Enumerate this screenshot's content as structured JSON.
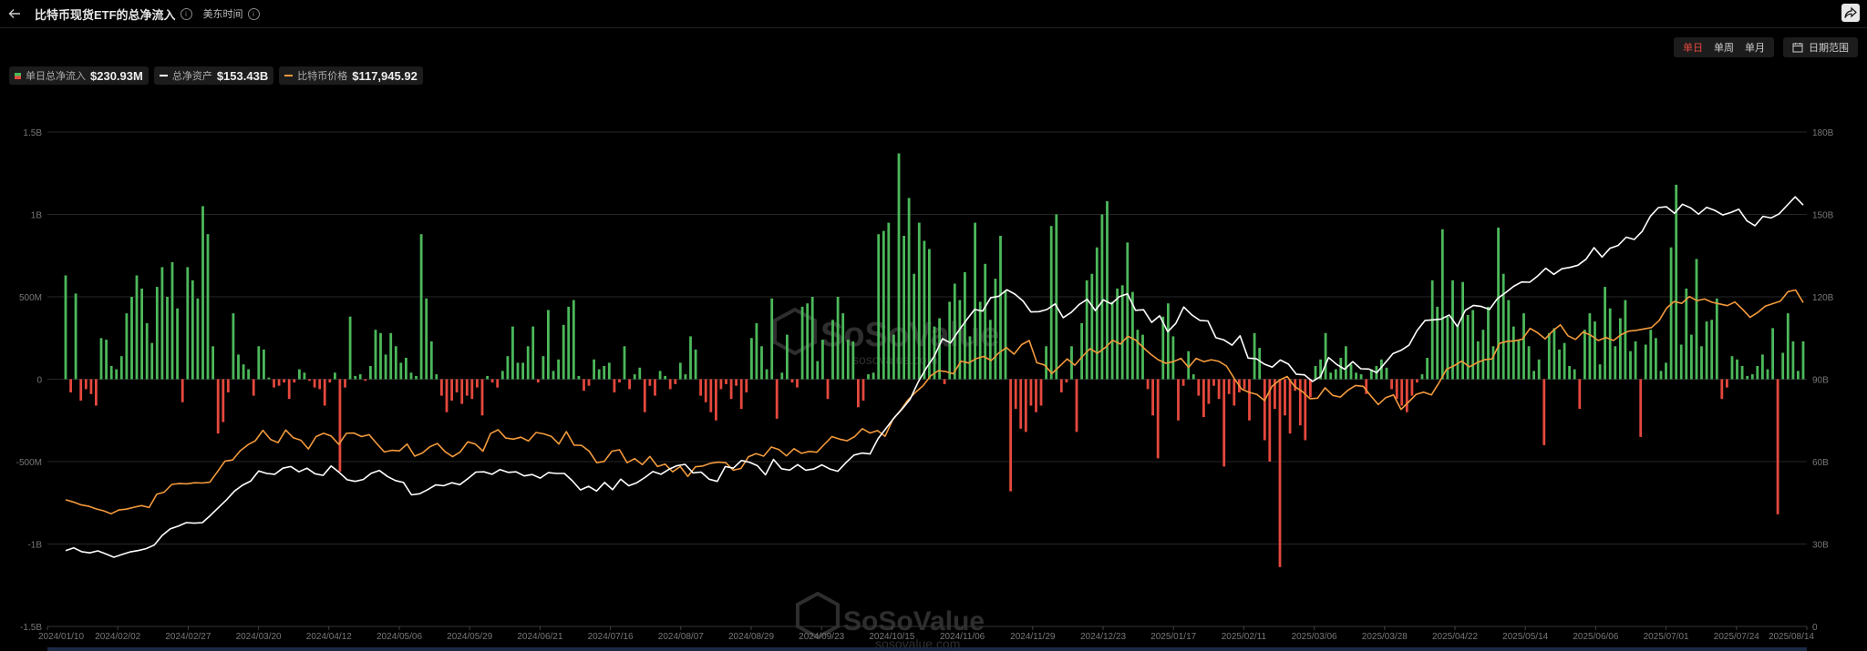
{
  "header": {
    "title": "比特币现货ETF的总净流入",
    "timezone": "美东时间"
  },
  "controls": {
    "periods": [
      "单日",
      "单周",
      "单月"
    ],
    "active_period": "单日",
    "date_range_label": "日期范围"
  },
  "legend": [
    {
      "label": "单日总净流入",
      "value": "$230.93M",
      "color": "#4cb85a"
    },
    {
      "label": "总净资产",
      "value": "$153.43B",
      "color": "#ffffff"
    },
    {
      "label": "比特币价格",
      "value": "$117,945.92",
      "color": "#f39a3c"
    }
  ],
  "watermark": {
    "brand": "SoSoValue",
    "url": "sosovalue.com"
  },
  "chart_data": {
    "type": "bar+line",
    "x_ticks": [
      "2024/01/10",
      "2024/02/02",
      "2024/02/27",
      "2024/03/20",
      "2024/04/12",
      "2024/05/06",
      "2024/05/29",
      "2024/06/21",
      "2024/07/16",
      "2024/08/07",
      "2024/08/29",
      "2024/09/23",
      "2024/10/15",
      "2024/11/06",
      "2024/11/29",
      "2024/12/23",
      "2025/01/17",
      "2025/02/11",
      "2025/03/06",
      "2025/03/28",
      "2025/04/22",
      "2025/05/14",
      "2025/06/06",
      "2025/07/01",
      "2025/07/24",
      "2025/08/14"
    ],
    "y_left": {
      "ticks": [
        1.5,
        1,
        0.5,
        0,
        -0.5,
        -1,
        -1.5
      ],
      "tick_labels": [
        "1.5B",
        "1B",
        "500M",
        "0",
        "-500M",
        "-1B",
        "-1.5B"
      ],
      "range": [
        -1.5,
        1.5
      ],
      "unit": "B USD"
    },
    "y_right": {
      "ticks": [
        180,
        150,
        120,
        90,
        60,
        30,
        0
      ],
      "tick_labels": [
        "180B",
        "150B",
        "120B",
        "90B",
        "60B",
        "30B",
        "0"
      ],
      "range": [
        0,
        180
      ],
      "unit": "B USD"
    },
    "grid": true,
    "series": [
      {
        "name": "单日总净流入",
        "type": "bar",
        "axis": "left",
        "positive_color": "#4cb85a",
        "negative_color": "#e5483d",
        "values": [
          0.63,
          -0.08,
          0.52,
          -0.13,
          -0.06,
          -0.09,
          -0.16,
          0.25,
          0.24,
          0.08,
          0.06,
          0.14,
          0.4,
          0.5,
          0.63,
          0.55,
          0.34,
          0.22,
          0.56,
          0.68,
          0.5,
          0.71,
          0.43,
          -0.14,
          0.68,
          0.6,
          0.49,
          1.05,
          0.88,
          0.2,
          -0.33,
          -0.26,
          -0.08,
          0.4,
          0.15,
          0.09,
          0.06,
          -0.1,
          0.2,
          0.18,
          0.01,
          -0.05,
          -0.04,
          -0.02,
          -0.12,
          -0.02,
          0.06,
          0.04,
          -0.01,
          -0.05,
          -0.06,
          -0.16,
          -0.02,
          0.04,
          -0.56,
          -0.05,
          0.38,
          0.02,
          0.03,
          -0.01,
          0.08,
          0.3,
          0.28,
          0.15,
          0.28,
          0.2,
          0.1,
          0.13,
          0.04,
          0.02,
          0.88,
          0.49,
          0.23,
          0.03,
          -0.1,
          -0.2,
          -0.13,
          -0.08,
          -0.15,
          -0.1,
          -0.12,
          -0.05,
          -0.22,
          0.02,
          -0.02,
          -0.05,
          0.05,
          0.14,
          0.32,
          0.1,
          0.1,
          0.2,
          0.32,
          -0.02,
          0.14,
          0.42,
          0.05,
          0.12,
          0.33,
          0.44,
          0.48,
          0.02,
          -0.07,
          -0.04,
          0.12,
          0.06,
          0.08,
          0.1,
          -0.08,
          -0.02,
          0.2,
          -0.06,
          0.03,
          0.07,
          -0.2,
          -0.04,
          -0.1,
          0.05,
          0.02,
          -0.06,
          -0.03,
          0.1,
          0.03,
          0.26,
          0.18,
          -0.1,
          -0.14,
          -0.2,
          -0.25,
          -0.06,
          -0.03,
          -0.12,
          -0.04,
          -0.18,
          -0.08,
          0.25,
          0.34,
          0.2,
          0.06,
          0.49,
          -0.24,
          0.04,
          0.27,
          -0.02,
          -0.05,
          0.44,
          0.46,
          0.5,
          0.11,
          0.24,
          -0.12,
          0.36,
          0.5,
          0.4,
          0.24,
          0.23,
          -0.17,
          -0.13,
          0.03,
          0.04,
          0.88,
          0.9,
          0.95,
          0.27,
          1.37,
          0.87,
          1.1,
          0.64,
          0.95,
          0.84,
          0.79,
          0.32,
          0.37,
          -0.03,
          0.47,
          0.58,
          0.48,
          0.65,
          0.26,
          0.95,
          0.47,
          0.7,
          0.36,
          0.61,
          0.87,
          0.54,
          -0.68,
          -0.18,
          -0.3,
          -0.32,
          -0.16,
          -0.2,
          -0.16,
          0.2,
          0.93,
          1.0,
          -0.08,
          -0.02,
          0.2,
          -0.32,
          0.34,
          0.6,
          0.64,
          0.8,
          1.0,
          1.08,
          0.47,
          0.55,
          0.57,
          0.83,
          0.53,
          0.3,
          0.27,
          -0.06,
          -0.22,
          -0.48,
          0.38,
          0.46,
          0.26,
          -0.25,
          -0.04,
          0.17,
          0.03,
          -0.1,
          -0.23,
          -0.15,
          -0.04,
          -0.12,
          -0.53,
          -0.09,
          -0.16,
          -0.08,
          -0.06,
          -0.25,
          0.28,
          0.19,
          -0.37,
          -0.5,
          -0.18,
          -1.14,
          -0.22,
          -0.33,
          -0.07,
          -0.28,
          -0.37,
          -0.11,
          0.08,
          0.12,
          0.28,
          0.04,
          0.06,
          0.13,
          0.2,
          0.09,
          0.04,
          0.03,
          -0.09,
          0.06,
          0.08,
          0.12,
          0.07,
          -0.06,
          -0.12,
          -0.16,
          -0.2,
          -0.1,
          -0.02,
          0.03,
          0.13,
          0.6,
          0.44,
          0.91,
          0.38,
          0.6,
          0.33,
          0.59,
          0.39,
          0.42,
          0.23,
          0.3,
          0.44,
          0.2,
          0.92,
          0.64,
          0.48,
          0.32,
          0.24,
          0.4,
          0.2,
          0.05,
          0.12,
          -0.4,
          0.28,
          0.31,
          0.18,
          0.22,
          0.08,
          0.06,
          -0.18,
          0.3,
          0.4,
          0.35,
          0.09,
          0.56,
          0.43,
          0.2,
          0.37,
          0.48,
          0.17,
          0.23,
          -0.35,
          0.21,
          0.3,
          0.25,
          0.05,
          0.1,
          0.8,
          1.18,
          0.21,
          0.55,
          0.27,
          0.73,
          0.2,
          0.35,
          0.36,
          0.49,
          -0.12,
          -0.05,
          0.14,
          0.12,
          0.08,
          0.02,
          0.03,
          0.08,
          0.15,
          0.06,
          0.31,
          -0.82,
          0.16,
          0.4,
          0.23,
          0.05,
          0.23
        ]
      },
      {
        "name": "总净资产",
        "type": "line",
        "axis": "right",
        "color": "#ffffff",
        "values": [
          27.6,
          28.6,
          27.2,
          26.8,
          27.5,
          26.4,
          25.2,
          26.2,
          27.1,
          27.6,
          28.3,
          29.6,
          33.1,
          35.5,
          36.5,
          37.8,
          37.6,
          37.8,
          40.4,
          43.3,
          46.1,
          49.3,
          51.4,
          52.9,
          56.6,
          55.7,
          55.4,
          57.6,
          58.2,
          56.3,
          57.6,
          55.6,
          55.0,
          58.4,
          56.1,
          53.4,
          52.8,
          53.5,
          55.8,
          56.8,
          54.6,
          53.1,
          52.4,
          47.9,
          48.3,
          49.8,
          51.5,
          51.2,
          52.3,
          51.6,
          53.8,
          56.2,
          56.3,
          55.4,
          57.1,
          56.1,
          56.3,
          54.8,
          55.3,
          54.0,
          56.0,
          55.7,
          55.7,
          53.0,
          49.7,
          51.0,
          49.3,
          52.4,
          49.8,
          53.6,
          51.2,
          52.3,
          54.2,
          56.4,
          55.4,
          57.2,
          58.5,
          59.0,
          55.9,
          56.2,
          53.6,
          52.8,
          58.2,
          57.6,
          60.4,
          59.8,
          58.5,
          55.2,
          60.8,
          57.4,
          56.9,
          58.9,
          56.9,
          57.3,
          58.8,
          57.3,
          56.5,
          59.6,
          62.4,
          63.1,
          62.8,
          68.4,
          72.2,
          76.0,
          79.2,
          82.8,
          89.1,
          94.1,
          98.5,
          104.8,
          103.2,
          107.6,
          111.6,
          115.4,
          114.8,
          119.7,
          120.2,
          122.6,
          121.0,
          118.5,
          114.5,
          114.6,
          115.4,
          117.4,
          112.4,
          114.3,
          117.2,
          119.1,
          115.0,
          118.9,
          117.4,
          120.1,
          121.1,
          115.1,
          115.3,
          110.7,
          113.1,
          107.3,
          110.3,
          116.3,
          113.4,
          111.4,
          111.2,
          105.1,
          104.3,
          102.4,
          105.8,
          97.7,
          97.5,
          95.5,
          94.4,
          97.0,
          95.5,
          91.8,
          91.6,
          89.2,
          91.0,
          97.9,
          95.4,
          93.6,
          96.4,
          93.8,
          93.7,
          92.4,
          95.8,
          99.3,
          100.5,
          102.4,
          107.7,
          111.4,
          111.6,
          111.9,
          113.4,
          109.2,
          115.1,
          116.9,
          116.5,
          115.4,
          119.4,
          121.5,
          123.8,
          125.4,
          125.3,
          127.6,
          130.4,
          128.2,
          130.2,
          130.7,
          131.5,
          133.7,
          137.9,
          134.5,
          137.7,
          138.7,
          141.7,
          140.9,
          143.9,
          149.3,
          152.5,
          152.8,
          150.4,
          153.7,
          152.4,
          150.1,
          152.6,
          151.5,
          149.8,
          150.7,
          151.9,
          147.7,
          145.9,
          149.3,
          148.7,
          150.2,
          153.3,
          156.4,
          153.4
        ]
      },
      {
        "name": "比特币价格",
        "type": "line",
        "axis": "right_scaled",
        "color": "#f39a3c",
        "values": [
          46.1,
          45.3,
          44.3,
          43.8,
          42.8,
          42.1,
          41.0,
          42.4,
          42.7,
          43.4,
          44.0,
          43.3,
          48.1,
          48.9,
          51.7,
          52.0,
          51.9,
          52.3,
          52.2,
          52.5,
          56.3,
          60.2,
          60.6,
          63.9,
          66.1,
          67.6,
          71.4,
          68.1,
          66.9,
          71.5,
          68.7,
          67.8,
          64.6,
          69.1,
          70.3,
          69.3,
          66.3,
          70.3,
          70.4,
          69.1,
          69.8,
          66.6,
          63.5,
          64.1,
          63.9,
          66.4,
          62.0,
          63.1,
          65.4,
          66.6,
          63.6,
          61.8,
          63.5,
          67.2,
          66.4,
          63.8,
          70.2,
          71.6,
          68.6,
          68.2,
          68.9,
          67.5,
          70.6,
          70.1,
          69.2,
          66.4,
          70.9,
          66.0,
          65.9,
          63.8,
          59.6,
          60.1,
          63.8,
          64.3,
          59.6,
          61.1,
          58.9,
          61.9,
          58.2,
          59.1,
          56.3,
          58.2,
          54.6,
          58.1,
          58.4,
          59.4,
          59.8,
          59.6,
          56.9,
          57.5,
          61.8,
          62.9,
          62.0,
          65.3,
          64.4,
          62.1,
          64.7,
          63.0,
          63.7,
          63.4,
          66.3,
          69.1,
          68.2,
          67.6,
          69.1,
          72.0,
          70.4,
          71.3,
          69.2,
          75.2,
          78.5,
          82.4,
          85.2,
          87.6,
          91.2,
          93.1,
          92.8,
          92.0,
          96.6,
          95.9,
          97.5,
          98.3,
          96.8,
          99.6,
          101.5,
          99.1,
          102.6,
          104.1,
          96.0,
          95.2,
          92.1,
          94.7,
          97.4,
          95.1,
          98.3,
          101.1,
          99.5,
          101.5,
          104.2,
          102.8,
          105.6,
          104.3,
          101.6,
          99.1,
          97.1,
          95.8,
          96.4,
          97.6,
          94.3,
          97.6,
          96.4,
          97.1,
          96.5,
          94.8,
          90.3,
          86.4,
          85.2,
          84.5,
          82.2,
          87.4,
          89.7,
          91.0,
          87.3,
          85.5,
          82.9,
          83.1,
          86.9,
          84.1,
          83.5,
          86.0,
          87.7,
          87.4,
          84.0,
          80.8,
          83.3,
          84.3,
          79.0,
          81.7,
          84.5,
          85.3,
          84.3,
          88.7,
          93.6,
          94.9,
          96.6,
          94.5,
          96.0,
          97.1,
          97.4,
          103.1,
          103.8,
          104.0,
          104.6,
          108.5,
          106.9,
          104.7,
          107.6,
          109.8,
          105.8,
          104.5,
          107.2,
          106.0,
          104.1,
          105.2,
          104.1,
          106.2,
          107.5,
          107.8,
          108.3,
          108.8,
          111.3,
          115.9,
          118.3,
          117.6,
          120.1,
          118.6,
          119.2,
          118.0,
          117.4,
          116.8,
          118.1,
          115.5,
          112.5,
          114.3,
          116.6,
          117.5,
          118.4,
          121.9,
          122.5,
          117.9
        ]
      }
    ]
  }
}
